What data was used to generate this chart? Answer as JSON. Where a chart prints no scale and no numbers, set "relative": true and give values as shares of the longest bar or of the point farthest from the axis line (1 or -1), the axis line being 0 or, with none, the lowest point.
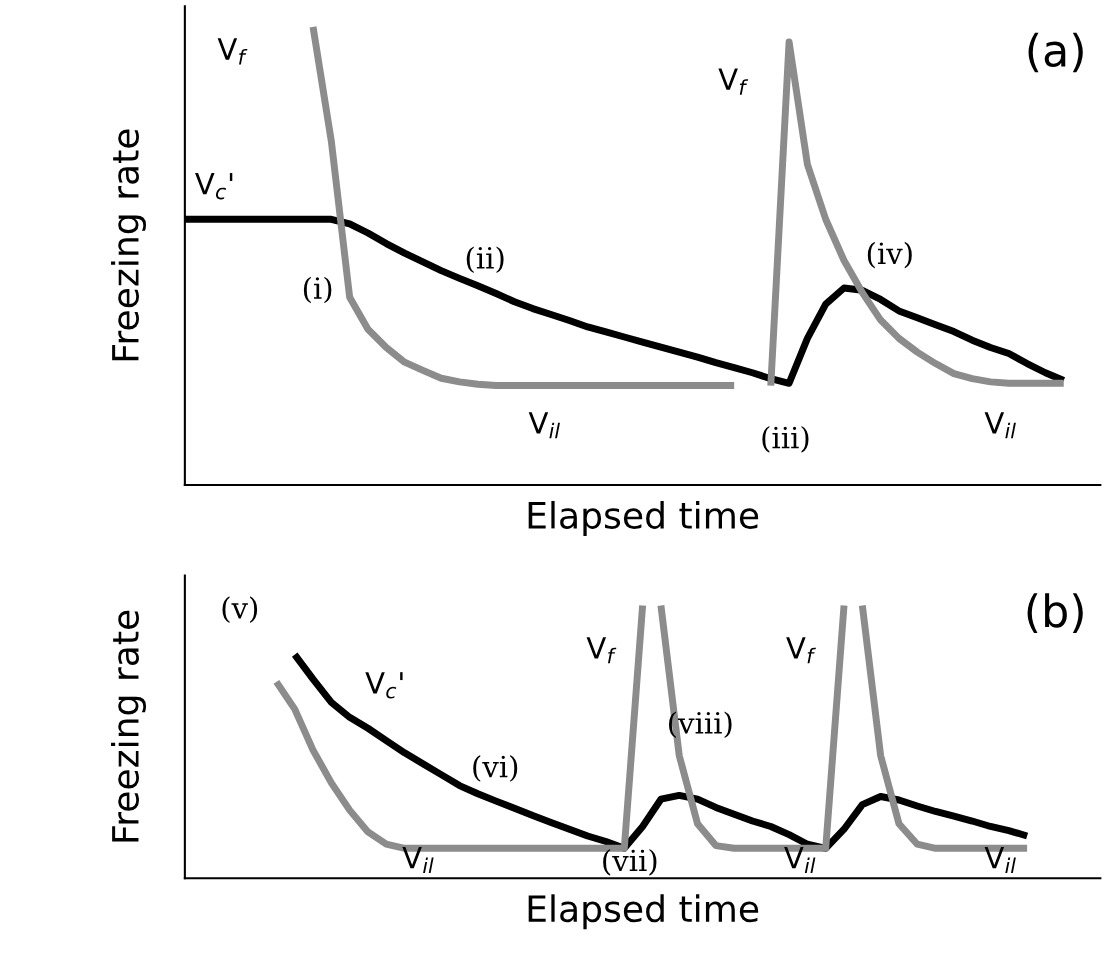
{
  "chart_data": [
    {
      "type": "line",
      "title": "(a)",
      "xlabel": "Elapsed time",
      "ylabel": "Freezing rate",
      "relative": true,
      "categories": [
        null,
        null,
        null,
        null,
        null,
        null,
        null,
        null,
        null,
        null,
        null,
        null,
        null,
        null,
        null,
        null,
        null,
        null,
        null,
        null,
        null,
        null,
        null,
        null,
        null,
        null,
        null,
        null,
        null,
        null,
        null,
        null,
        null,
        null,
        null,
        null,
        null,
        null,
        null,
        null,
        null,
        null,
        null,
        null,
        null,
        null,
        null,
        null,
        null,
        null
      ],
      "series": [
        {
          "color": "#000000",
          "values": [
            0.58,
            0.58,
            0.58,
            0.58,
            0.58,
            0.58,
            0.58,
            0.58,
            0.58,
            0.57,
            0.55,
            0.527,
            0.506,
            0.487,
            0.468,
            0.451,
            0.435,
            0.418,
            0.4,
            0.385,
            0.372,
            0.359,
            0.345,
            0.334,
            0.323,
            0.312,
            0.301,
            0.29,
            0.279,
            0.267,
            0.256,
            0.245,
            0.232,
            0.222,
            0.32,
            0.395,
            0.43,
            0.425,
            0.405,
            0.38,
            0.365,
            0.35,
            0.335,
            0.316,
            0.3,
            0.287,
            0.265,
            0.245,
            0.228,
            null
          ]
        },
        {
          "color": "#8c8c8c",
          "values": [
            null,
            null,
            null,
            null,
            null,
            null,
            null,
            1.0,
            0.75,
            0.41,
            0.34,
            0.3,
            0.268,
            0.25,
            0.233,
            0.225,
            0.22,
            0.217,
            0.217,
            0.217,
            0.217,
            0.217,
            0.217,
            0.217,
            0.217,
            0.217,
            0.217,
            0.217,
            0.217,
            0.217,
            0.217,
            null,
            null,
            null,
            null,
            null,
            null,
            null,
            null,
            null,
            null,
            null,
            null,
            null,
            null,
            null,
            null,
            null,
            null,
            null
          ]
        },
        {
          "color": "#8c8c8c",
          "values": [
            null,
            null,
            null,
            null,
            null,
            null,
            null,
            null,
            null,
            null,
            null,
            null,
            null,
            null,
            null,
            null,
            null,
            null,
            null,
            null,
            null,
            null,
            null,
            null,
            null,
            null,
            null,
            null,
            null,
            null,
            null,
            null,
            0.217,
            0.967,
            0.7,
            0.58,
            0.49,
            0.42,
            0.36,
            0.32,
            0.29,
            0.265,
            0.243,
            0.232,
            0.225,
            0.222,
            0.222,
            0.222,
            0.222,
            null
          ]
        }
      ],
      "annotations": [
        "V$_{f}$",
        "V$_{c}$'",
        "(i)",
        "(ii)",
        "V$_{il}$",
        "(iii)",
        "V$_{f}$",
        "(iv)",
        "V$_{il}$"
      ]
    },
    {
      "type": "line",
      "title": "(b)",
      "xlabel": "Elapsed time",
      "ylabel": "Freezing rate",
      "relative": true,
      "categories": [
        null,
        null,
        null,
        null,
        null,
        null,
        null,
        null,
        null,
        null,
        null,
        null,
        null,
        null,
        null,
        null,
        null,
        null,
        null,
        null,
        null,
        null,
        null,
        null,
        null,
        null,
        null,
        null,
        null,
        null,
        null,
        null,
        null,
        null,
        null,
        null,
        null,
        null,
        null,
        null,
        null,
        null,
        null,
        null,
        null,
        null,
        null,
        null,
        null,
        null
      ],
      "series": [
        {
          "color": "#000000",
          "values": [
            null,
            null,
            null,
            null,
            null,
            null,
            0.82,
            0.73,
            0.645,
            0.59,
            0.55,
            0.505,
            0.46,
            0.42,
            0.38,
            0.34,
            0.31,
            0.283,
            0.257,
            0.23,
            0.205,
            0.18,
            0.155,
            0.135,
            0.11,
            0.19,
            0.29,
            0.304,
            0.29,
            0.26,
            0.235,
            0.21,
            0.19,
            0.16,
            0.125,
            0.11,
            0.18,
            0.27,
            0.3,
            0.287,
            0.265,
            0.245,
            0.228,
            0.21,
            0.19,
            0.175,
            0.155,
            null,
            null,
            null
          ]
        },
        {
          "color": "#8c8c8c",
          "values": [
            null,
            null,
            null,
            null,
            null,
            0.72,
            0.62,
            0.47,
            0.35,
            0.25,
            0.17,
            0.125,
            0.11,
            0.11,
            0.11,
            0.11,
            0.11,
            0.11,
            0.11,
            0.11,
            0.11,
            0.11,
            0.11,
            0.11,
            0.11,
            1.0,
            null,
            null,
            null,
            null,
            null,
            null,
            null,
            null,
            null,
            null,
            null,
            null,
            null,
            null,
            null,
            null,
            null,
            null,
            null,
            null,
            null,
            null,
            null,
            null
          ]
        },
        {
          "color": "#8c8c8c",
          "values": [
            null,
            null,
            null,
            null,
            null,
            null,
            null,
            null,
            null,
            null,
            null,
            null,
            null,
            null,
            null,
            null,
            null,
            null,
            null,
            null,
            null,
            null,
            null,
            null,
            null,
            null,
            1.0,
            0.45,
            0.2,
            0.12,
            0.11,
            0.11,
            0.11,
            0.11,
            0.11,
            0.11,
            1.0,
            null,
            null,
            null,
            null,
            null,
            null,
            null,
            null,
            null,
            null,
            null,
            null,
            null
          ]
        },
        {
          "color": "#8c8c8c",
          "values": [
            null,
            null,
            null,
            null,
            null,
            null,
            null,
            null,
            null,
            null,
            null,
            null,
            null,
            null,
            null,
            null,
            null,
            null,
            null,
            null,
            null,
            null,
            null,
            null,
            null,
            null,
            null,
            null,
            null,
            null,
            null,
            null,
            null,
            null,
            null,
            null,
            null,
            1.0,
            0.45,
            0.2,
            0.125,
            0.11,
            0.11,
            0.11,
            0.11,
            0.11,
            0.11,
            null,
            null,
            null
          ]
        }
      ],
      "annotations": [
        "(v)",
        "V$_{c}$'",
        "(vi)",
        "(vii)",
        "(viii)",
        "V$_{f}$",
        "V$_{f}$",
        "V$_{il}$",
        "V$_{il}$",
        "V$_{il}$"
      ]
    }
  ]
}
